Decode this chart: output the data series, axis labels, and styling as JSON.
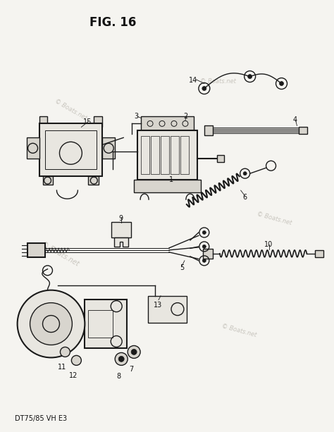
{
  "title": "FIG. 16",
  "subtitle": "DT75/85 VH E3",
  "watermark1": "© Boats.net",
  "watermark2": "© Boats.net",
  "watermark3": "© Boats.net",
  "bg_color": "#f5f4f0",
  "line_color": "#1a1a1a",
  "fill_light": "#e8e6e0",
  "fill_med": "#d8d5ce",
  "text_color": "#111111",
  "wm_color": "#c8c5be",
  "figsize": [
    4.74,
    6.13
  ],
  "dpi": 100
}
